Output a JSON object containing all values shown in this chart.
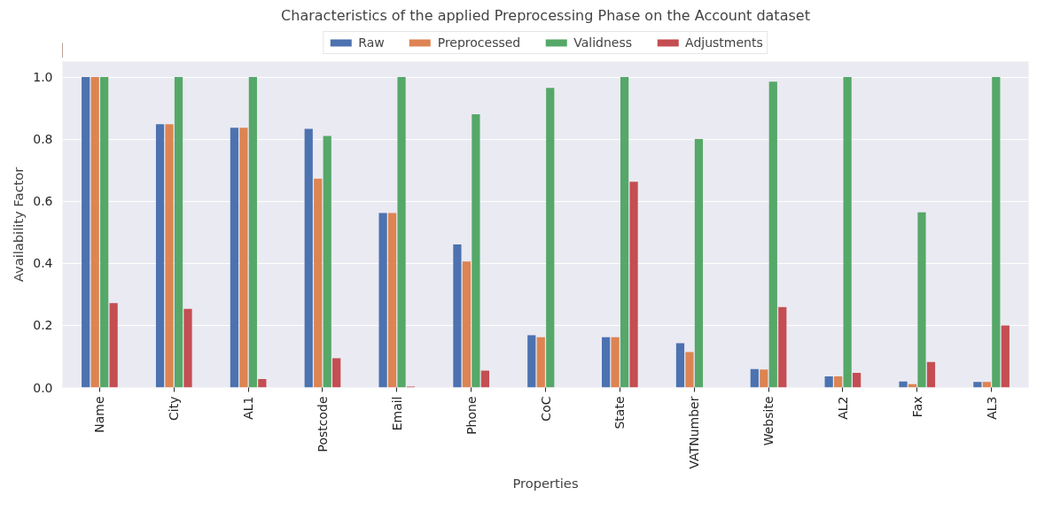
{
  "chart_data": {
    "type": "bar",
    "title": "Characteristics of the applied Preprocessing Phase on the Account dataset",
    "xlabel": "Properties",
    "ylabel": "Availability Factor",
    "categories": [
      "Name",
      "City",
      "AL1",
      "Postcode",
      "Email",
      "Phone",
      "CoC",
      "State",
      "VATNumber",
      "Website",
      "AL2",
      "Fax",
      "AL3"
    ],
    "series": [
      {
        "name": "Raw",
        "color": "#4c72b0",
        "values": [
          1.0,
          0.848,
          0.837,
          0.833,
          0.562,
          0.461,
          0.168,
          0.162,
          0.143,
          0.059,
          0.036,
          0.019,
          0.018
        ]
      },
      {
        "name": "Preprocessed",
        "color": "#dd8452",
        "values": [
          1.0,
          0.848,
          0.837,
          0.673,
          0.562,
          0.406,
          0.162,
          0.162,
          0.114,
          0.058,
          0.036,
          0.011,
          0.018
        ]
      },
      {
        "name": "Validness",
        "color": "#55a868",
        "values": [
          1.0,
          1.0,
          1.0,
          0.81,
          1.0,
          0.88,
          0.965,
          1.0,
          0.8,
          0.985,
          1.0,
          0.564,
          1.0
        ]
      },
      {
        "name": "Adjustments",
        "color": "#c44e52",
        "values": [
          0.272,
          0.253,
          0.027,
          0.094,
          0.003,
          0.054,
          0.0,
          0.663,
          0.0,
          0.259,
          0.047,
          0.082,
          0.2
        ]
      }
    ],
    "ylim": [
      0,
      1.05
    ],
    "yticks": [
      {
        "value": 0,
        "label": "0.0"
      },
      {
        "value": 0.2,
        "label": "0.2"
      },
      {
        "value": 0.4,
        "label": "0.4"
      },
      {
        "value": 0.6,
        "label": "0.6"
      },
      {
        "value": 0.8,
        "label": "0.8"
      },
      {
        "value": 1.0,
        "label": "1.0"
      }
    ],
    "grid": "y",
    "legend": "top"
  }
}
